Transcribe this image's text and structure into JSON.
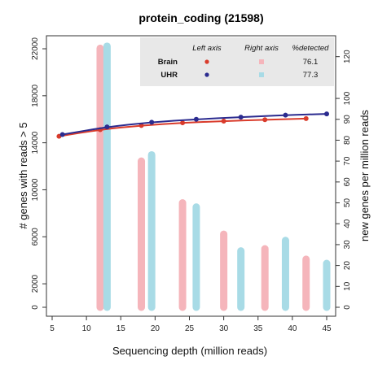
{
  "chart_data": {
    "type": "bar+line",
    "title": "protein_coding (21598)",
    "xlabel": "Sequencing depth (million reads)",
    "ylabel_left": "# genes with reads > 5",
    "ylabel_right": "new genes per million reads",
    "x_ticks": [
      5,
      10,
      15,
      20,
      25,
      30,
      35,
      40,
      45
    ],
    "xlim": [
      5,
      45.5
    ],
    "y_left_ticks": [
      0,
      2000,
      6000,
      10000,
      14000,
      18000,
      22000
    ],
    "y_left_lim": [
      0,
      22000
    ],
    "y_right_ticks": [
      0,
      10,
      20,
      30,
      40,
      50,
      60,
      70,
      80,
      90,
      100,
      120
    ],
    "y_right_lim": [
      0,
      130
    ],
    "legend": {
      "headers": [
        "Left axis",
        "Right axis",
        "%detected"
      ],
      "rows": [
        {
          "name": "Brain",
          "pct": "76.1",
          "line_color": "#d93b2b",
          "bar_color": "#f5b5bb"
        },
        {
          "name": "UHR",
          "pct": "77.3",
          "line_color": "#2b2b8f",
          "bar_color": "#a8dbe6"
        }
      ]
    },
    "series": [
      {
        "name": "Brain",
        "axis": "left",
        "style": "line",
        "color": "#d93b2b",
        "x": [
          6,
          12,
          18,
          24,
          30,
          36,
          42
        ],
        "y": [
          14550,
          15120,
          15470,
          15700,
          15840,
          15960,
          16060
        ]
      },
      {
        "name": "UHR",
        "axis": "left",
        "style": "line",
        "color": "#2b2b8f",
        "x": [
          6.5,
          13,
          19.5,
          26,
          32.5,
          39,
          45
        ],
        "y": [
          14700,
          15350,
          15750,
          16000,
          16180,
          16350,
          16460
        ]
      },
      {
        "name": "Brain",
        "axis": "right",
        "style": "bar",
        "color": "#f5b5bb",
        "x": [
          12,
          18,
          24,
          30,
          36,
          42
        ],
        "y": [
          124,
          70,
          50,
          35,
          28,
          23
        ]
      },
      {
        "name": "UHR",
        "axis": "right",
        "style": "bar",
        "color": "#a8dbe6",
        "x": [
          13,
          19.5,
          26,
          32.5,
          39,
          45
        ],
        "y": [
          125,
          73,
          48,
          27,
          32,
          21
        ]
      }
    ]
  }
}
